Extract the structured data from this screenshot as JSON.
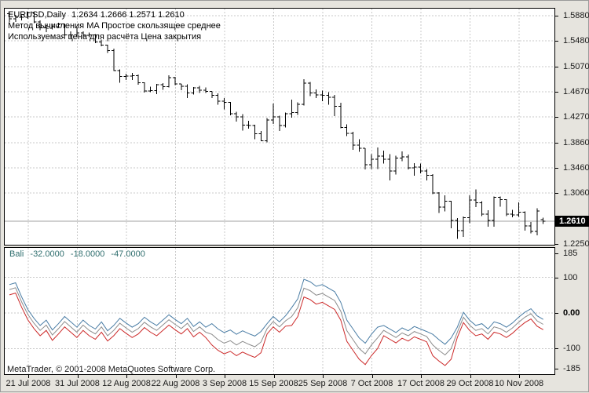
{
  "header": {
    "symbol_period": "EURUSD,Daily",
    "ohlc_text": "1.2634 1.2666 1.2571 1.2610",
    "ma_method_line": "Метод вычисления MA Простое скользящее среднее",
    "price_line": "Используемая цена для расчёта Цена закрытия"
  },
  "footer": {
    "copyright": "MetaTrader, © 2001-2008 MetaQuotes Software Corp."
  },
  "chart_data": {
    "type": "ohlc-bar-with-oscillator",
    "symbol": "EURUSD",
    "timeframe": "Daily",
    "main": {
      "axis_labels": [
        "1.5880",
        "1.5480",
        "1.5070",
        "1.4670",
        "1.4270",
        "1.3860",
        "1.3460",
        "1.3060",
        "1.2250"
      ],
      "current_price": "1.2610",
      "ylim": [
        1.225,
        1.599
      ],
      "ohlc": [
        [
          1.591,
          1.5928,
          1.5778,
          1.5828
        ],
        [
          1.5828,
          1.5888,
          1.578,
          1.5853
        ],
        [
          1.5853,
          1.5882,
          1.5805,
          1.5853
        ],
        [
          1.5853,
          1.5938,
          1.583,
          1.5925
        ],
        [
          1.5925,
          1.5934,
          1.5758,
          1.5778
        ],
        [
          1.5778,
          1.5805,
          1.5649,
          1.5686
        ],
        [
          1.5686,
          1.5727,
          1.5615,
          1.568
        ],
        [
          1.568,
          1.5747,
          1.5661,
          1.5706
        ],
        [
          1.5706,
          1.5766,
          1.5693,
          1.5746
        ],
        [
          1.5746,
          1.575,
          1.5562,
          1.557
        ],
        [
          1.557,
          1.5627,
          1.5522,
          1.5574
        ],
        [
          1.5574,
          1.5695,
          1.5541,
          1.5602
        ],
        [
          1.5602,
          1.5631,
          1.5516,
          1.5564
        ],
        [
          1.5564,
          1.561,
          1.5537,
          1.5572
        ],
        [
          1.5572,
          1.5586,
          1.5441,
          1.5462
        ],
        [
          1.5462,
          1.5499,
          1.5394,
          1.5408
        ],
        [
          1.5408,
          1.5417,
          1.5283,
          1.5322
        ],
        [
          1.5322,
          1.5355,
          1.4998,
          1.5005
        ],
        [
          1.5005,
          1.5022,
          1.4815,
          1.4909
        ],
        [
          1.4909,
          1.4956,
          1.4853,
          1.4916
        ],
        [
          1.4916,
          1.4966,
          1.4858,
          1.4923
        ],
        [
          1.4923,
          1.4944,
          1.4783,
          1.481
        ],
        [
          1.481,
          1.4818,
          1.4659,
          1.468
        ],
        [
          1.468,
          1.4747,
          1.466,
          1.4688
        ],
        [
          1.4688,
          1.4796,
          1.4632,
          1.478
        ],
        [
          1.478,
          1.4808,
          1.4701,
          1.4751
        ],
        [
          1.4751,
          1.4931,
          1.474,
          1.4896
        ],
        [
          1.4896,
          1.4903,
          1.4772,
          1.4795
        ],
        [
          1.4795,
          1.4795,
          1.4694,
          1.4758
        ],
        [
          1.4758,
          1.479,
          1.457,
          1.465
        ],
        [
          1.465,
          1.4744,
          1.4627,
          1.4733
        ],
        [
          1.4733,
          1.4763,
          1.465,
          1.4695
        ],
        [
          1.4695,
          1.4738,
          1.4648,
          1.4673
        ],
        [
          1.4673,
          1.4675,
          1.4569,
          1.4613
        ],
        [
          1.4613,
          1.4642,
          1.4465,
          1.4522
        ],
        [
          1.4522,
          1.457,
          1.4385,
          1.45
        ],
        [
          1.45,
          1.4505,
          1.4294,
          1.432
        ],
        [
          1.432,
          1.435,
          1.4195,
          1.4268
        ],
        [
          1.4268,
          1.4311,
          1.4049,
          1.4137
        ],
        [
          1.4137,
          1.421,
          1.4085,
          1.4131
        ],
        [
          1.4131,
          1.4142,
          1.3913,
          1.3999
        ],
        [
          1.3999,
          1.4043,
          1.3882,
          1.3888
        ],
        [
          1.3888,
          1.4251,
          1.3867,
          1.422
        ],
        [
          1.422,
          1.4481,
          1.4156,
          1.4269
        ],
        [
          1.4269,
          1.4286,
          1.4045,
          1.4134
        ],
        [
          1.4134,
          1.4336,
          1.4104,
          1.4319
        ],
        [
          1.4319,
          1.4543,
          1.4255,
          1.4339
        ],
        [
          1.4339,
          1.4499,
          1.43,
          1.4467
        ],
        [
          1.4467,
          1.4866,
          1.445,
          1.4803
        ],
        [
          1.4803,
          1.4827,
          1.4603,
          1.4649
        ],
        [
          1.4649,
          1.4703,
          1.4569,
          1.4617
        ],
        [
          1.4617,
          1.4689,
          1.4522,
          1.4614
        ],
        [
          1.4614,
          1.4662,
          1.4465,
          1.458
        ],
        [
          1.458,
          1.4619,
          1.4281,
          1.4437
        ],
        [
          1.4437,
          1.4491,
          1.4086,
          1.41
        ],
        [
          1.41,
          1.415,
          1.3964,
          1.4008
        ],
        [
          1.4008,
          1.4034,
          1.3748,
          1.3823
        ],
        [
          1.3823,
          1.3915,
          1.3714,
          1.3772
        ],
        [
          1.3772,
          1.3774,
          1.3437,
          1.3507
        ],
        [
          1.3507,
          1.368,
          1.3443,
          1.3598
        ],
        [
          1.3598,
          1.3784,
          1.3443,
          1.3645
        ],
        [
          1.3645,
          1.3732,
          1.3525,
          1.3596
        ],
        [
          1.3596,
          1.368,
          1.3259,
          1.3408
        ],
        [
          1.3408,
          1.3655,
          1.3356,
          1.3612
        ],
        [
          1.3612,
          1.3722,
          1.3565,
          1.3633
        ],
        [
          1.3633,
          1.3672,
          1.3433,
          1.3462
        ],
        [
          1.3462,
          1.3534,
          1.3333,
          1.3471
        ],
        [
          1.3471,
          1.3527,
          1.3373,
          1.341
        ],
        [
          1.341,
          1.3441,
          1.3261,
          1.3339
        ],
        [
          1.3339,
          1.3359,
          1.3042,
          1.3059
        ],
        [
          1.3059,
          1.3075,
          1.274,
          1.2838
        ],
        [
          1.2838,
          1.3022,
          1.2765,
          1.293
        ],
        [
          1.293,
          1.2933,
          1.2497,
          1.2623
        ],
        [
          1.2623,
          1.266,
          1.233,
          1.2465
        ],
        [
          1.2465,
          1.2686,
          1.2365,
          1.2669
        ],
        [
          1.2669,
          1.3023,
          1.2582,
          1.2951
        ],
        [
          1.2951,
          1.3117,
          1.2839,
          1.2907
        ],
        [
          1.2907,
          1.293,
          1.2694,
          1.2726
        ],
        [
          1.2726,
          1.2789,
          1.2525,
          1.2624
        ],
        [
          1.2624,
          1.3005,
          1.2525,
          1.299
        ],
        [
          1.299,
          1.3005,
          1.2843,
          1.2955
        ],
        [
          1.2955,
          1.296,
          1.2694,
          1.2721
        ],
        [
          1.2721,
          1.2792,
          1.2675,
          1.2711
        ],
        [
          1.2711,
          1.2913,
          1.2683,
          1.2753
        ],
        [
          1.2753,
          1.2766,
          1.2461,
          1.2539
        ],
        [
          1.2539,
          1.2602,
          1.242,
          1.2449
        ],
        [
          1.2449,
          1.2815,
          1.2388,
          1.2774
        ],
        [
          1.2634,
          1.2666,
          1.2571,
          1.261
        ]
      ]
    },
    "time_ticks": [
      "21 Jul 2008",
      "31 Jul 2008",
      "12 Aug 2008",
      "22 Aug 2008",
      "3 Sep 2008",
      "15 Sep 2008",
      "25 Sep 2008",
      "7 Oct 2008",
      "17 Oct 2008",
      "29 Oct 2008",
      "10 Nov 2008"
    ],
    "indicator": {
      "name": "Bali",
      "values": [
        "-32.0000",
        "-18.0000",
        "-47.0000"
      ],
      "axis_labels": [
        "185",
        "100",
        "0.00",
        "-100",
        "-185"
      ],
      "ylim": [
        -185,
        185
      ],
      "series": [
        {
          "name": "upper-line",
          "color": "#4a7da5",
          "values": [
            80,
            85,
            45,
            10,
            -15,
            -35,
            -20,
            -48,
            -30,
            -10,
            -25,
            -40,
            -20,
            -35,
            -45,
            -25,
            -50,
            -35,
            -15,
            -28,
            -40,
            -30,
            -12,
            -25,
            -35,
            -20,
            -5,
            -18,
            -30,
            -15,
            -38,
            -25,
            -40,
            -30,
            -45,
            -55,
            -48,
            -60,
            -50,
            -58,
            -65,
            -52,
            -30,
            -10,
            -25,
            -8,
            15,
            40,
            95,
            88,
            75,
            80,
            70,
            60,
            30,
            -20,
            -45,
            -70,
            -85,
            -60,
            -40,
            -35,
            -45,
            -55,
            -42,
            -50,
            -38,
            -45,
            -52,
            -60,
            -75,
            -88,
            -70,
            -40,
            2,
            -20,
            -35,
            -30,
            -45,
            -25,
            -30,
            -40,
            -28,
            -12,
            2,
            12,
            -8,
            -18
          ]
        },
        {
          "name": "middle-line",
          "color": "#8c8c8c",
          "values": [
            66,
            71,
            31,
            -4,
            -29,
            -49,
            -34,
            -62,
            -44,
            -24,
            -39,
            -54,
            -34,
            -49,
            -59,
            -39,
            -64,
            -49,
            -29,
            -42,
            -54,
            -44,
            -26,
            -39,
            -49,
            -34,
            -19,
            -32,
            -44,
            -29,
            -52,
            -39,
            -54,
            -60,
            -75,
            -85,
            -78,
            -90,
            -80,
            -88,
            -95,
            -82,
            -44,
            -24,
            -39,
            -22,
            -10,
            15,
            70,
            63,
            50,
            55,
            45,
            35,
            5,
            -50,
            -75,
            -100,
            -115,
            -90,
            -70,
            -49,
            -59,
            -69,
            -56,
            -64,
            -52,
            -59,
            -66,
            -90,
            -105,
            -118,
            -100,
            -54,
            -12,
            -34,
            -49,
            -44,
            -59,
            -39,
            -44,
            -54,
            -42,
            -26,
            -12,
            -2,
            -22,
            -32
          ]
        },
        {
          "name": "lower-line",
          "color": "#cc2a2a",
          "values": [
            51,
            56,
            16,
            -19,
            -44,
            -64,
            -49,
            -77,
            -59,
            -39,
            -54,
            -69,
            -49,
            -64,
            -74,
            -54,
            -79,
            -64,
            -44,
            -57,
            -69,
            -59,
            -41,
            -54,
            -64,
            -49,
            -34,
            -47,
            -59,
            -44,
            -67,
            -54,
            -69,
            -90,
            -105,
            -115,
            -108,
            -120,
            -110,
            -118,
            -125,
            -112,
            -59,
            -39,
            -54,
            -37,
            -35,
            -10,
            45,
            38,
            25,
            30,
            20,
            10,
            -20,
            -80,
            -105,
            -130,
            -145,
            -120,
            -100,
            -64,
            -74,
            -84,
            -71,
            -79,
            -67,
            -74,
            -81,
            -120,
            -135,
            -148,
            -130,
            -69,
            -27,
            -49,
            -64,
            -59,
            -74,
            -54,
            -59,
            -69,
            -57,
            -41,
            -27,
            -17,
            -37,
            -47
          ]
        }
      ]
    },
    "colors": {
      "bar": "#000000",
      "grid": "#c9c9c9",
      "current_price_line": "#a0a0a0",
      "price_tag_bg": "#000000",
      "price_tag_text": "#ffffff",
      "indicator_label": "#2f6e6e"
    }
  }
}
